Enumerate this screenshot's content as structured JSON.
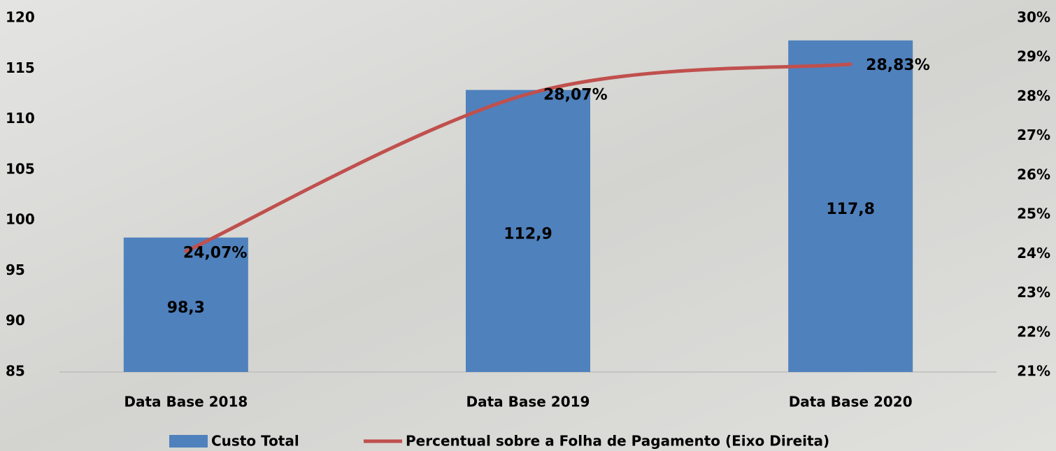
{
  "chart_data": {
    "type": "bar",
    "categories": [
      "Data Base 2018",
      "Data Base 2019",
      "Data Base 2020"
    ],
    "series": [
      {
        "name": "Custo Total",
        "type": "bar",
        "color": "#4f81bd",
        "values": [
          98.3,
          112.9,
          117.8
        ],
        "value_labels": [
          "98,3",
          "112,9",
          "117,8"
        ]
      },
      {
        "name": "Percentual sobre a Folha de Pagamento (Eixo Direita)",
        "type": "line",
        "axis": "y2",
        "color": "#c0504d",
        "values": [
          24.07,
          28.07,
          28.83
        ],
        "value_labels": [
          "24,07%",
          "28,07%",
          "28,83%"
        ]
      }
    ],
    "ylim": [
      85,
      120
    ],
    "yticks": [
      85,
      90,
      95,
      100,
      105,
      110,
      115,
      120
    ],
    "y2lim": [
      21,
      30
    ],
    "y2ticks": [
      {
        "value": 21,
        "label": "21%"
      },
      {
        "value": 22,
        "label": "22%"
      },
      {
        "value": 23,
        "label": "23%"
      },
      {
        "value": 24,
        "label": "24%"
      },
      {
        "value": 25,
        "label": "25%"
      },
      {
        "value": 26,
        "label": "26%"
      },
      {
        "value": 27,
        "label": "27%"
      },
      {
        "value": 28,
        "label": "28%"
      },
      {
        "value": 29,
        "label": "29%"
      },
      {
        "value": 30,
        "label": "30%"
      }
    ],
    "legend": "bottom"
  }
}
